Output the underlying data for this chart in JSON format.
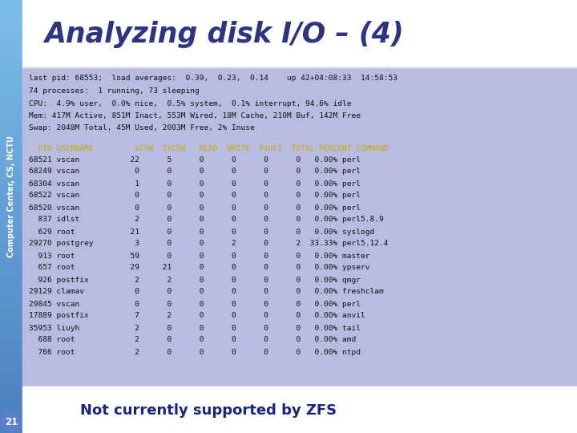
{
  "title": "Analyzing disk I/O – (4)",
  "title_color": "#2d3580",
  "sidebar_color_top": "#7bbde8",
  "sidebar_color_bottom": "#4a7fc0",
  "sidebar_text": "Computer Center, CS, NCTU",
  "sidebar_text_color": "#ffffff",
  "page_number": "21",
  "page_num_bg": "#5a80cc",
  "page_num_color": "#ffffff",
  "bottom_text": "Not currently supported by ZFS",
  "bottom_text_color": "#1a237e",
  "header_line_color": "#aaaacc",
  "content_bg": "#b8bce0",
  "header_row_color": "#ccaa00",
  "header_text": "  PID USERNAME         VCSW  IVCSW   READ  WRITE  FAULT  TOTAL PERCENT COMMAND",
  "summary_lines": [
    "last pid: 68553;  load averages:  0.39,  0.23,  0.14    up 42+04:08:33  14:58:53",
    "74 processes:  1 running, 73 sleeping",
    "CPU:  4.9% user,  0.0% nice,  0.5% system,  0.1% interrupt, 94.6% idle",
    "Mem: 417M Active, 851M Inact, 553M Wired, 18M Cache, 210M Buf, 142M Free",
    "Swap: 2048M Total, 45M Used, 2003M Free, 2% Inuse"
  ],
  "data_rows": [
    "68521 vscan           22      5      0      0      0      0   0.00% perl",
    "68249 vscan            0      0      0      0      0      0   0.00% perl",
    "68304 vscan            1      0      0      0      0      0   0.00% perl",
    "68522 vscan            0      0      0      0      0      0   0.00% perl",
    "68520 vscan            0      0      0      0      0      0   0.00% perl",
    "  837 idlst            2      0      0      0      0      0   0.00% perl5.8.9",
    "  629 root            21      0      0      0      0      0   0.00% syslogd",
    "29270 postgrey         3      0      0      2      0      2  33.33% perl5.12.4",
    "  913 root            59      0      0      0      0      0   0.00% master",
    "  657 root            29     21      0      0      0      0   0.00% ypserv",
    "  926 postfix          2      2      0      0      0      0   0.00% qmgr",
    "29129 clamav           0      0      0      0      0      0   0.00% freshclam",
    "29845 vscan            0      0      0      0      0      0   0.00% perl",
    "17889 postfix          7      2      0      0      0      0   0.00% anvil",
    "35953 liuyh            2      0      0      0      0      0   0.00% tail",
    "  688 root             2      0      0      0      0      0   0.00% amd",
    "  766 root             2      0      0      0      0      0   0.00% ntpd"
  ],
  "bg_color": "#ffffff"
}
